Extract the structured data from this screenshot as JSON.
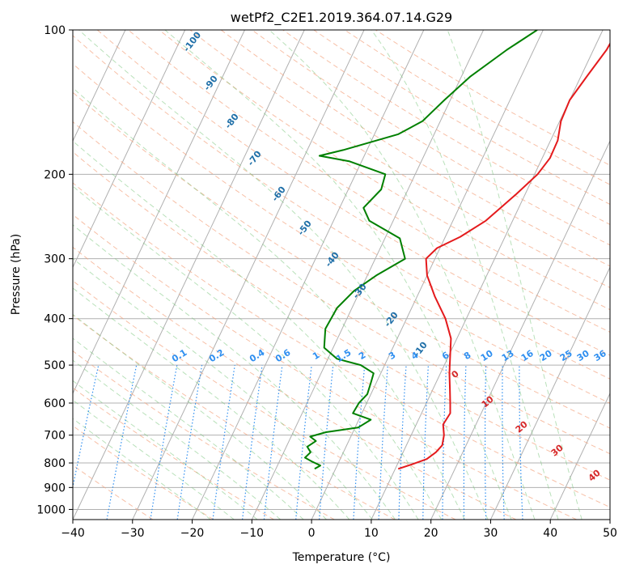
{
  "chart_data": {
    "type": "skew-t",
    "title": "wetPf2_C2E1.2019.364.07.14.G29",
    "xlabel": "Temperature (°C)",
    "ylabel": "Pressure (hPa)",
    "xlim": [
      -40,
      50
    ],
    "ylim": [
      1050,
      100
    ],
    "y_scale": "log",
    "grid": true,
    "x_ticks": [
      -40,
      -30,
      -20,
      -10,
      0,
      10,
      20,
      30,
      40,
      50
    ],
    "y_ticks": [
      100,
      200,
      300,
      400,
      500,
      600,
      700,
      800,
      900,
      1000
    ],
    "series": [
      {
        "color": "#e41a1c",
        "points": [
          [
            10.5,
            823
          ],
          [
            12.5,
            805
          ],
          [
            14.5,
            785
          ],
          [
            15.5,
            760
          ],
          [
            16.0,
            735
          ],
          [
            15.5,
            700
          ],
          [
            14.5,
            665
          ],
          [
            14.8,
            630
          ],
          [
            14.0,
            600
          ],
          [
            12.8,
            560
          ],
          [
            11.5,
            520
          ],
          [
            10.3,
            480
          ],
          [
            9.0,
            440
          ],
          [
            6.5,
            400
          ],
          [
            3.0,
            360
          ],
          [
            0.0,
            325
          ],
          [
            -1.5,
            300
          ],
          [
            -0.5,
            285
          ],
          [
            2.5,
            270
          ],
          [
            5.5,
            250
          ],
          [
            8.5,
            220
          ],
          [
            10.5,
            200
          ],
          [
            11.3,
            185
          ],
          [
            11.2,
            170
          ],
          [
            10.2,
            155
          ],
          [
            10.0,
            140
          ],
          [
            11.0,
            125
          ],
          [
            12.2,
            110
          ],
          [
            12.5,
            100
          ]
        ]
      },
      {
        "color": "#008000",
        "points": [
          [
            -3.5,
            823
          ],
          [
            -2.8,
            810
          ],
          [
            -4.5,
            795
          ],
          [
            -6.0,
            780
          ],
          [
            -5.5,
            760
          ],
          [
            -6.5,
            740
          ],
          [
            -5.5,
            720
          ],
          [
            -6.8,
            705
          ],
          [
            -4.5,
            690
          ],
          [
            0.5,
            675
          ],
          [
            2.0,
            650
          ],
          [
            -1.5,
            630
          ],
          [
            -1.3,
            600
          ],
          [
            -0.6,
            575
          ],
          [
            -0.9,
            545
          ],
          [
            -1.2,
            520
          ],
          [
            -4.0,
            500
          ],
          [
            -8.5,
            485
          ],
          [
            -11.5,
            460
          ],
          [
            -12.8,
            420
          ],
          [
            -12.5,
            380
          ],
          [
            -11.0,
            350
          ],
          [
            -8.5,
            325
          ],
          [
            -5.0,
            300
          ],
          [
            -7.5,
            272
          ],
          [
            -14.0,
            250
          ],
          [
            -16.0,
            235
          ],
          [
            -14.5,
            215
          ],
          [
            -15.0,
            200
          ],
          [
            -22.0,
            188
          ],
          [
            -27.5,
            183
          ],
          [
            -24.0,
            178
          ],
          [
            -16.0,
            165
          ],
          [
            -13.0,
            155
          ],
          [
            -11.0,
            140
          ],
          [
            -8.5,
            125
          ],
          [
            -4.5,
            110
          ],
          [
            -1.0,
            100
          ]
        ]
      }
    ],
    "dry_adiabat_labels": [
      "-100",
      "-90",
      "-80",
      "-70",
      "-60",
      "-50",
      "-40",
      "-30",
      "-20",
      "-10"
    ],
    "mixing_ratio_labels": [
      "0.1",
      "0.2",
      "0.4",
      "0.6",
      "1",
      "1.5",
      "2",
      "3",
      "4",
      "6",
      "8",
      "10",
      "13",
      "16",
      "20",
      "25",
      "30",
      "36"
    ],
    "mixing_ratio_values": [
      0.1,
      0.2,
      0.4,
      0.6,
      1,
      1.5,
      2,
      3,
      4,
      6,
      8,
      10,
      13,
      16,
      20,
      25,
      30,
      36
    ],
    "moist_adiabat_labels": [
      "0",
      "10",
      "20",
      "30",
      "40"
    ]
  }
}
